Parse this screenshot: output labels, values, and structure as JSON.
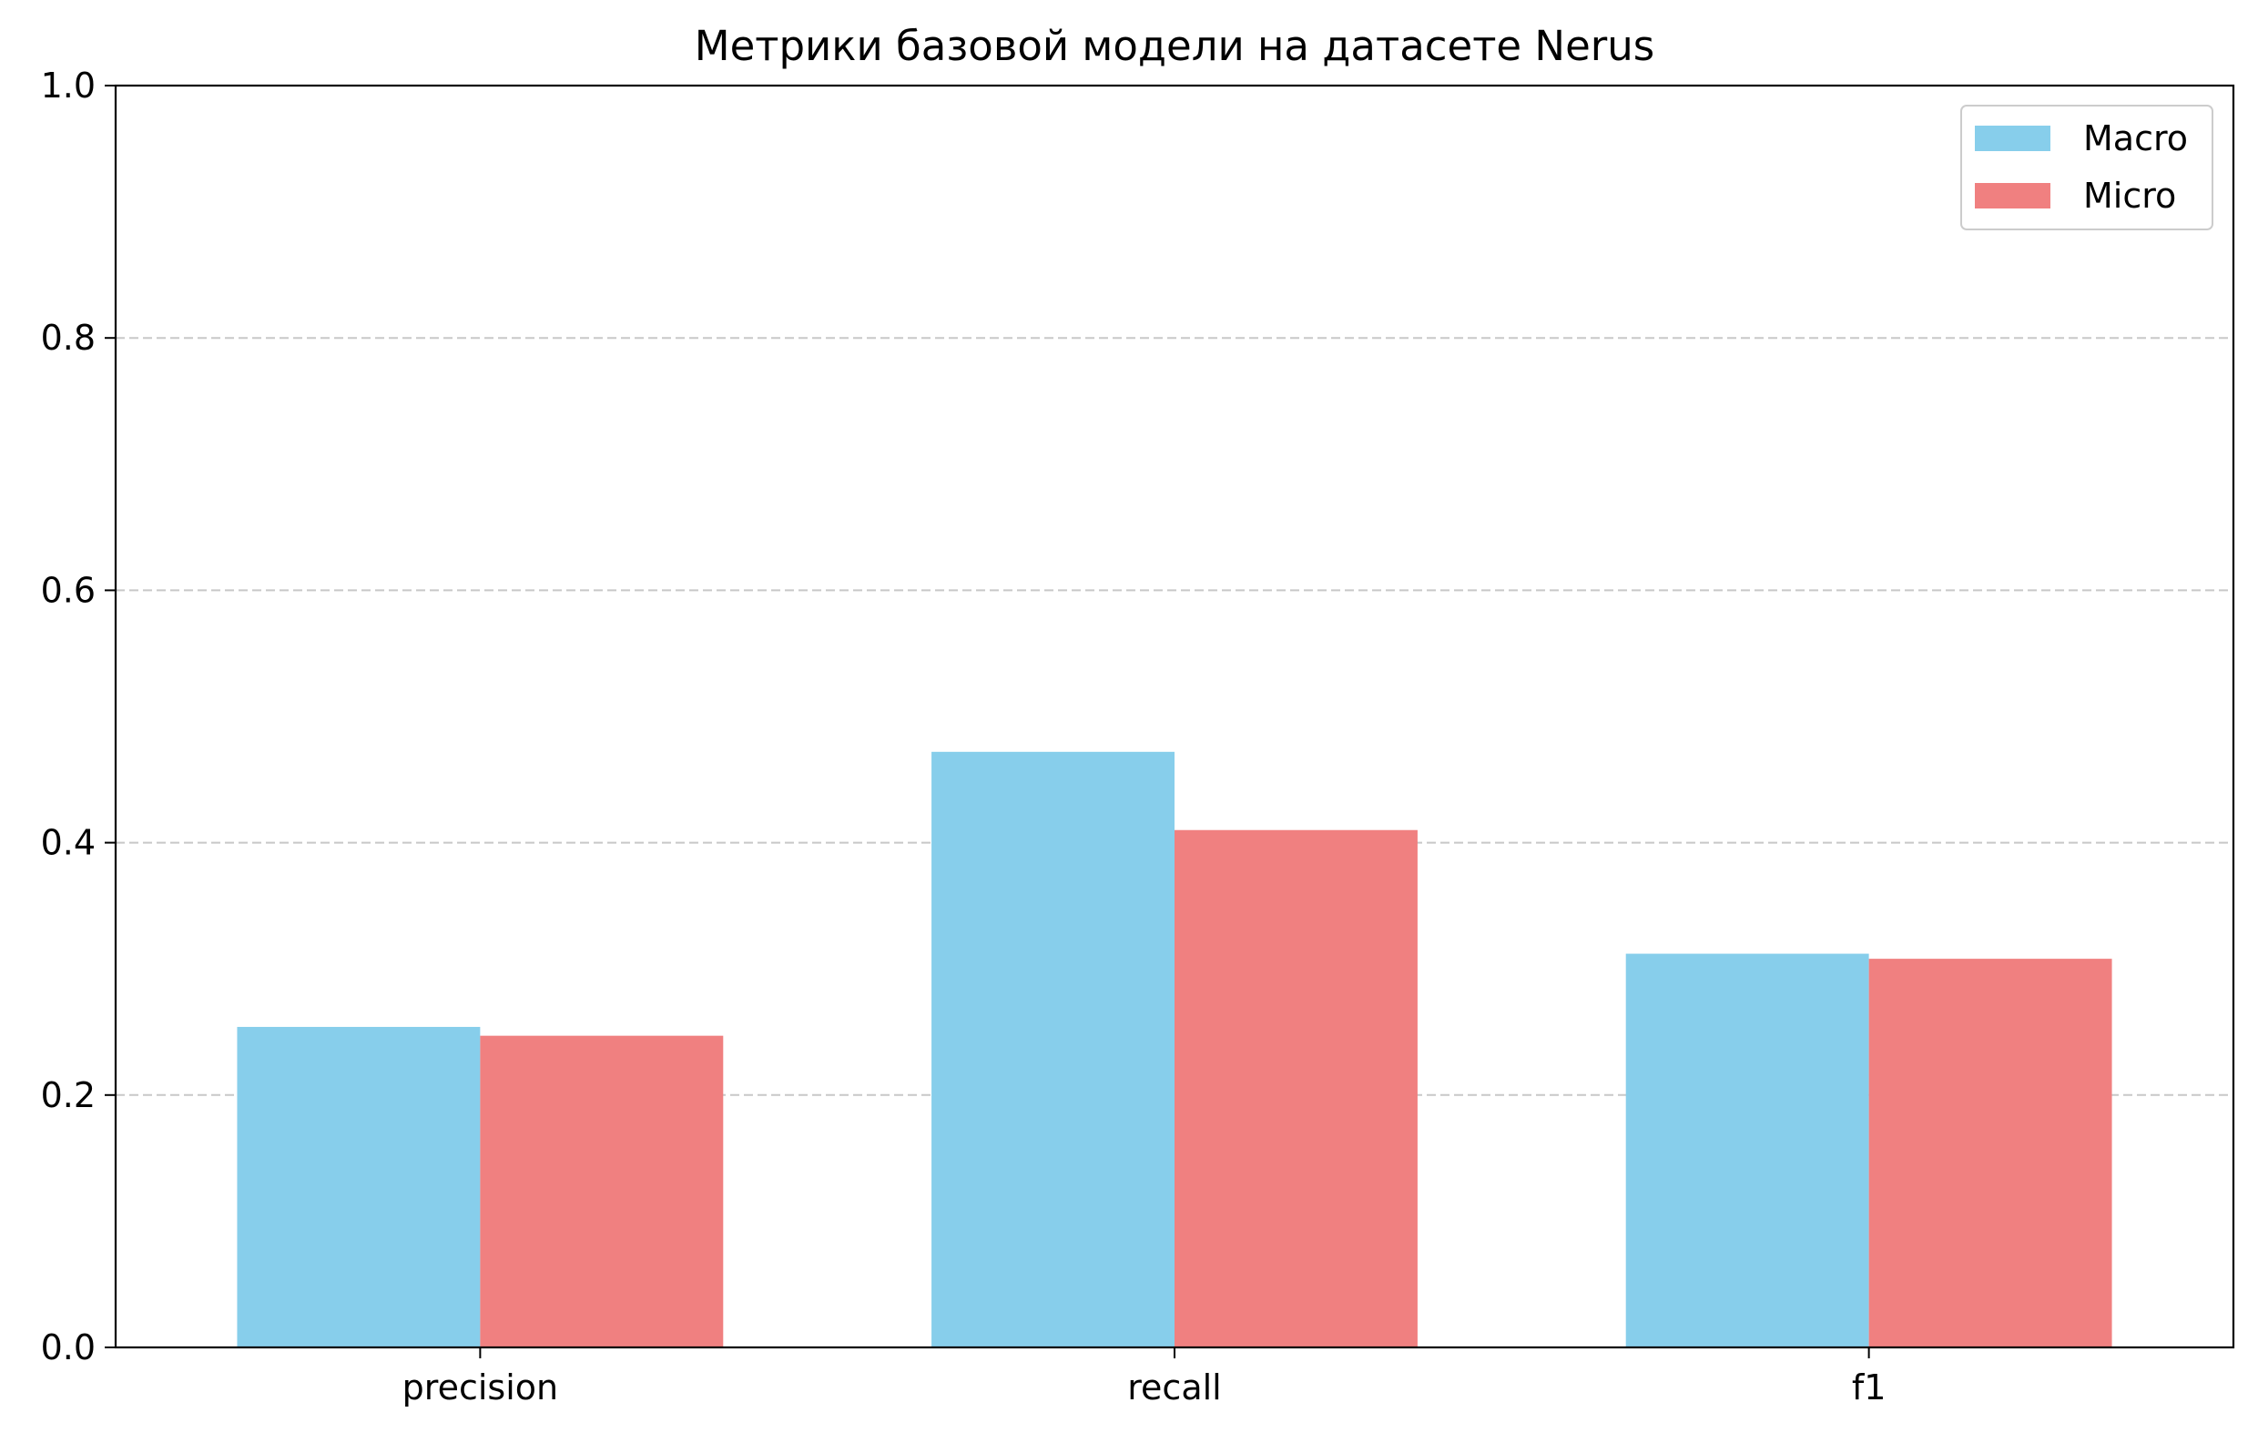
{
  "chart_data": {
    "type": "bar",
    "title": "Метрики базовой модели на датасете Nerus",
    "xlabel": "",
    "ylabel": "",
    "categories": [
      "precision",
      "recall",
      "f1"
    ],
    "series": [
      {
        "name": "Macro",
        "color": "#87CEEB",
        "values": [
          0.254,
          0.472,
          0.312
        ]
      },
      {
        "name": "Micro",
        "color": "#F08080",
        "values": [
          0.247,
          0.41,
          0.308
        ]
      }
    ],
    "ylim": [
      0,
      1.0
    ],
    "yticks": [
      0.0,
      0.2,
      0.4,
      0.6,
      0.8,
      1.0
    ],
    "ytick_labels": [
      "0.0",
      "0.2",
      "0.4",
      "0.6",
      "0.8",
      "1.0"
    ],
    "grid": {
      "axis": "y",
      "style": "dashed",
      "color": "#c8c8c8"
    },
    "legend": {
      "position": "top-right"
    }
  }
}
